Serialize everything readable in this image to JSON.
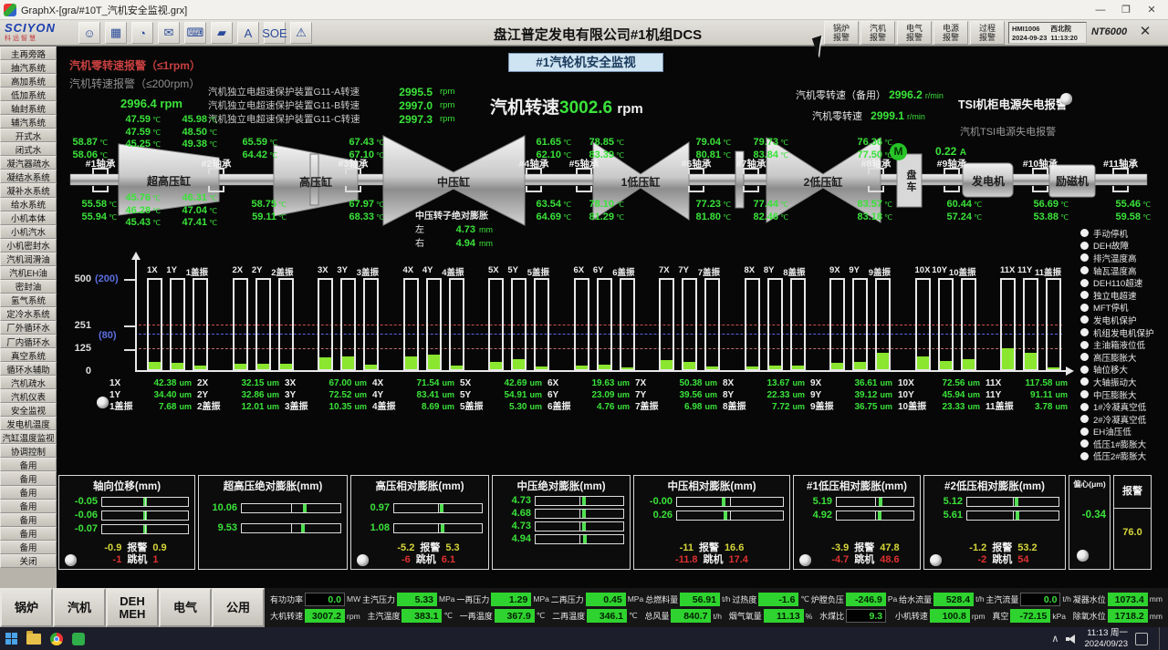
{
  "window_title": "GraphX-[gra/#10T_汽机安全监视.grx]",
  "window_controls": {
    "minimize": "—",
    "maximize": "❐",
    "close": "✕"
  },
  "toolbar": {
    "brand": "SCIYON",
    "brand_sub": "科远智慧",
    "icons": [
      "☺",
      "▦",
      "◔",
      "✉",
      "⌨",
      "▰",
      "A",
      "SOE",
      "⚠"
    ],
    "plant_title": "盘江普定发电有限公司#1机组DCS",
    "alarm_buttons": [
      {
        "l1": "锅炉",
        "l2": "报警"
      },
      {
        "l1": "汽机",
        "l2": "报警"
      },
      {
        "l1": "电气",
        "l2": "报警"
      },
      {
        "l1": "电源",
        "l2": "报警"
      },
      {
        "l1": "过程",
        "l2": "报警"
      }
    ],
    "hmi_id": "HMI1006",
    "hmi_site": "西北院",
    "hmi_date": "2024-09-23",
    "hmi_time": "11:13:20",
    "system_name": "NT6000",
    "close_glyph": "✕"
  },
  "sidebar_items": [
    "主再旁路",
    "抽汽系统",
    "高加系统",
    "低加系统",
    "轴封系统",
    "辅汽系统",
    "开式水",
    "闭式水",
    "凝汽器疏水",
    "凝结水系统",
    "凝补水系统",
    "给水系统",
    "小机本体",
    "小机汽水",
    "小机密封水",
    "汽机润滑油",
    "汽机EH油",
    "密封油",
    "氢气系统",
    "定冷水系统",
    "厂外循环水",
    "厂内循环水",
    "真空系统",
    "循环水辅助",
    "汽机疏水",
    "汽机仪表",
    "安全监视",
    "发电机温度",
    "汽缸温度监视",
    "协调控制",
    "备用",
    "备用",
    "备用",
    "备用",
    "备用",
    "备用",
    "备用",
    "关闭"
  ],
  "header": {
    "zero_speed_alarm": "汽机零转速报警（≤1rpm）",
    "speed_alarm": "汽机转速报警（≤200rpm）",
    "aux_speed": "2996.4",
    "g11": [
      {
        "label": "汽机独立电超速保护装置G11-A转速",
        "value": "2995.5"
      },
      {
        "label": "汽机独立电超速保护装置G11-B转速",
        "value": "2997.0"
      },
      {
        "label": "汽机独立电超速保护装置G11-C转速",
        "value": "2997.3"
      }
    ],
    "page_title": "#1汽轮机安全监视",
    "speed_label": "汽机转速",
    "speed": "3002.6",
    "zero_backup_label": "汽机零转速（备用）",
    "zero_backup": "2996.2",
    "zero_label": "汽机零转速",
    "zero": "2999.1",
    "tsi_cabinet_alarm": "TSI机柜电源失电报警",
    "tsi_power_alarm": "汽机TSI电源失电报警"
  },
  "turbine": {
    "cylinders": [
      "超高压缸",
      "高压缸",
      "中压缸",
      "1低压缸",
      "2低压缸",
      "盘车",
      "发电机",
      "励磁机"
    ],
    "bearings": [
      {
        "label": "#1轴承",
        "top": [
          "58.87",
          "58.06"
        ],
        "bottom": [
          "55.58",
          "55.94"
        ]
      },
      {
        "label": "#2轴承",
        "top": [
          "65.59",
          "64.42"
        ],
        "bottom": [
          "58.75",
          "59.11"
        ]
      },
      {
        "label": "#3轴承",
        "top": [
          "67.43",
          "67.10"
        ],
        "bottom": [
          "67.97",
          "68.33"
        ]
      },
      {
        "label": "#4轴承",
        "top": [
          "61.65",
          "62.10"
        ],
        "bottom": [
          "63.54",
          "64.69"
        ]
      },
      {
        "label": "#5轴承",
        "top": [
          "78.85",
          "83.39"
        ],
        "bottom": [
          "78.10",
          "81.29"
        ]
      },
      {
        "label": "#6轴承",
        "top": [
          "79.04",
          "80.81"
        ],
        "bottom": [
          "77.23",
          "81.80"
        ]
      },
      {
        "label": "#7轴承",
        "top": [
          "79.73",
          "83.84"
        ],
        "bottom": [
          "77.44",
          "82.46"
        ]
      },
      {
        "label": "#8轴承",
        "top": [
          "76.36",
          "77.50"
        ],
        "bottom": [
          "83.57",
          "83.18"
        ]
      },
      {
        "label": "#9轴承",
        "bottom": [
          "60.44",
          "57.24"
        ]
      },
      {
        "label": "#10轴承",
        "bottom": [
          "56.69",
          "53.88"
        ]
      },
      {
        "label": "#11轴承",
        "bottom": [
          "55.46",
          "59.58"
        ]
      }
    ],
    "uhp_top_left": [
      "47.59",
      "47.59",
      "45.25"
    ],
    "uhp_top_right": [
      "45.98",
      "48.50",
      "49.38"
    ],
    "uhp_bottom_left": [
      "45.76",
      "46.28",
      "45.43"
    ],
    "uhp_bottom_right": [
      "46.31",
      "47.04",
      "47.41"
    ],
    "ip_rotor_title": "中压转子绝对膨胀",
    "ip_rotor_left_label": "左",
    "ip_rotor_left": "4.73",
    "ip_rotor_right_label": "右",
    "ip_rotor_right": "4.94",
    "turning_gear_motor": "M",
    "turning_gear_current": "0.22"
  },
  "chart_data": {
    "type": "bar",
    "title": "轴承振动棒图",
    "categories": [
      "1",
      "2",
      "3",
      "4",
      "5",
      "6",
      "7",
      "8",
      "9",
      "10",
      "11"
    ],
    "series": [
      {
        "name": "X",
        "scale": 500,
        "values": [
          42.38,
          32.15,
          67.0,
          71.54,
          42.69,
          19.63,
          50.38,
          13.67,
          36.61,
          72.56,
          117.58
        ]
      },
      {
        "name": "Y",
        "scale": 500,
        "values": [
          34.4,
          32.86,
          72.52,
          83.41,
          54.91,
          23.09,
          39.56,
          22.33,
          39.12,
          45.94,
          91.11
        ]
      },
      {
        "name": "盖振",
        "scale": 200,
        "values": [
          7.68,
          12.01,
          10.35,
          8.69,
          5.3,
          4.76,
          6.98,
          7.72,
          36.75,
          23.33,
          3.78
        ]
      }
    ],
    "unit": "um",
    "ylim": [
      0,
      500
    ],
    "alt_ylim": [
      0,
      200
    ],
    "yticks": {
      "t500": "500",
      "t251": "251",
      "t125": "125",
      "t0": "0"
    },
    "alt_yticks": {
      "t200": "(200)",
      "t80": "(80)"
    },
    "thresholds": [
      {
        "value": 251,
        "color": "red"
      },
      {
        "value": 80,
        "scale": 200,
        "color": "blue"
      },
      {
        "value": 125,
        "color": "red"
      }
    ]
  },
  "alarm_list": [
    "手动停机",
    "DEH故障",
    "排汽温度高",
    "轴瓦温度高",
    "DEH110超速",
    "独立电超速",
    "MFT停机",
    "发电机保护",
    "机组发电机保护",
    "主油箱液位低",
    "高压膨胀大",
    "轴位移大",
    "大轴振动大",
    "中压膨胀大",
    "1#冷凝真空低",
    "2#冷凝真空低",
    "EH油压低",
    "低压1#膨胀大",
    "低压2#膨胀大"
  ],
  "panels": [
    {
      "title": "轴向位移(mm)",
      "bars": [
        {
          "value": "-0.05",
          "pct": 48
        },
        {
          "value": "-0.06",
          "pct": 48
        },
        {
          "value": "-0.07",
          "pct": 48
        }
      ],
      "alarm": {
        "low": "-0.9",
        "label": "报警",
        "high": "0.9"
      },
      "trip": {
        "low": "-1",
        "label": "跳机",
        "high": "1"
      }
    },
    {
      "title": "超高压绝对膨胀(mm)",
      "bars": [
        {
          "value": "10.06",
          "pct": 62
        },
        {
          "value": "9.53",
          "pct": 60
        }
      ]
    },
    {
      "title": "高压相对膨胀(mm)",
      "bars": [
        {
          "value": "0.97",
          "pct": 52
        },
        {
          "value": "1.08",
          "pct": 53
        }
      ],
      "alarm": {
        "low": "-5.2",
        "label": "报警",
        "high": "5.3"
      },
      "trip": {
        "low": "-6",
        "label": "跳机",
        "high": "6.1"
      }
    },
    {
      "title": "中压绝对膨胀(mm)",
      "bars": [
        {
          "value": "4.73",
          "pct": 53
        },
        {
          "value": "4.68",
          "pct": 53
        },
        {
          "value": "4.73",
          "pct": 53
        },
        {
          "value": "4.94",
          "pct": 54
        }
      ]
    },
    {
      "title": "中压相对膨胀(mm)",
      "bars": [
        {
          "value": "-0.00",
          "pct": 42
        },
        {
          "value": "0.26",
          "pct": 44
        }
      ],
      "alarm": {
        "low": "-11",
        "label": "报警",
        "high": "16.6"
      },
      "trip": {
        "low": "-11.8",
        "label": "跳机",
        "high": "17.4"
      }
    },
    {
      "title": "#1低压相对膨胀(mm)",
      "bars": [
        {
          "value": "5.19",
          "pct": 55
        },
        {
          "value": "4.92",
          "pct": 54
        }
      ],
      "alarm": {
        "low": "-3.9",
        "label": "报警",
        "high": "47.8"
      },
      "trip": {
        "low": "-4.7",
        "label": "跳机",
        "high": "48.6"
      }
    },
    {
      "title": "#2低压相对膨胀(mm)",
      "bars": [
        {
          "value": "5.12",
          "pct": 52
        },
        {
          "value": "5.61",
          "pct": 53
        }
      ],
      "alarm": {
        "low": "-1.2",
        "label": "报警",
        "high": "53.2"
      },
      "trip": {
        "low": "-2",
        "label": "跳机",
        "high": "54"
      }
    }
  ],
  "eccentric": {
    "title": "偏心(μm)",
    "value": "-0.34",
    "alarm_label": "报警",
    "alarm_value": "76.0"
  },
  "status": {
    "row1": [
      {
        "label": "有功功率",
        "value": "0.0",
        "unit": "MW",
        "inverted": false
      },
      {
        "label": "主汽压力",
        "value": "5.33",
        "unit": "MPa",
        "inverted": true
      },
      {
        "label": "一再压力",
        "value": "1.29",
        "unit": "MPa",
        "inverted": true
      },
      {
        "label": "二再压力",
        "value": "0.45",
        "unit": "MPa",
        "inverted": true
      },
      {
        "label": "总燃料量",
        "value": "56.91",
        "unit": "t/h",
        "inverted": true
      },
      {
        "label": "过热度",
        "value": "-1.6",
        "unit": "℃",
        "inverted": true
      },
      {
        "label": "炉膛负压",
        "value": "-246.9",
        "unit": "Pa",
        "inverted": true
      },
      {
        "label": "给水流量",
        "value": "528.4",
        "unit": "t/h",
        "inverted": true
      },
      {
        "label": "主汽流量",
        "value": "0.0",
        "unit": "t/h",
        "inverted": false
      },
      {
        "label": "凝器水位",
        "value": "1073.4",
        "unit": "mm",
        "inverted": true
      }
    ],
    "row2": [
      {
        "label": "大机转速",
        "value": "3007.2",
        "unit": "rpm",
        "inverted": true
      },
      {
        "label": "主汽温度",
        "value": "383.1",
        "unit": "℃",
        "inverted": true
      },
      {
        "label": "一再温度",
        "value": "367.9",
        "unit": "℃",
        "inverted": true
      },
      {
        "label": "二再温度",
        "value": "346.1",
        "unit": "℃",
        "inverted": true
      },
      {
        "label": "总风量",
        "value": "840.7",
        "unit": "t/h",
        "inverted": true
      },
      {
        "label": "烟气氧量",
        "value": "11.13",
        "unit": "%",
        "inverted": true
      },
      {
        "label": "水煤比",
        "value": "9.3",
        "unit": "",
        "inverted": false
      },
      {
        "label": "小机转速",
        "value": "100.8",
        "unit": "rpm",
        "inverted": true
      },
      {
        "label": "真空",
        "value": "-72.15",
        "unit": "kPa",
        "inverted": true
      },
      {
        "label": "除氧水位",
        "value": "1718.2",
        "unit": "mm",
        "inverted": true
      }
    ]
  },
  "bottom_nav": [
    {
      "l1": "锅炉"
    },
    {
      "l1": "汽机"
    },
    {
      "l1": "DEH",
      "l2": "MEH"
    },
    {
      "l1": "电气"
    },
    {
      "l1": "公用"
    }
  ],
  "taskbar": {
    "time": "11:13 周一",
    "date": "2024/09/23"
  },
  "units": {
    "c": "℃",
    "rpm": "rpm",
    "rmin": "r/min",
    "mm": "mm",
    "um": "um",
    "a": "A"
  }
}
